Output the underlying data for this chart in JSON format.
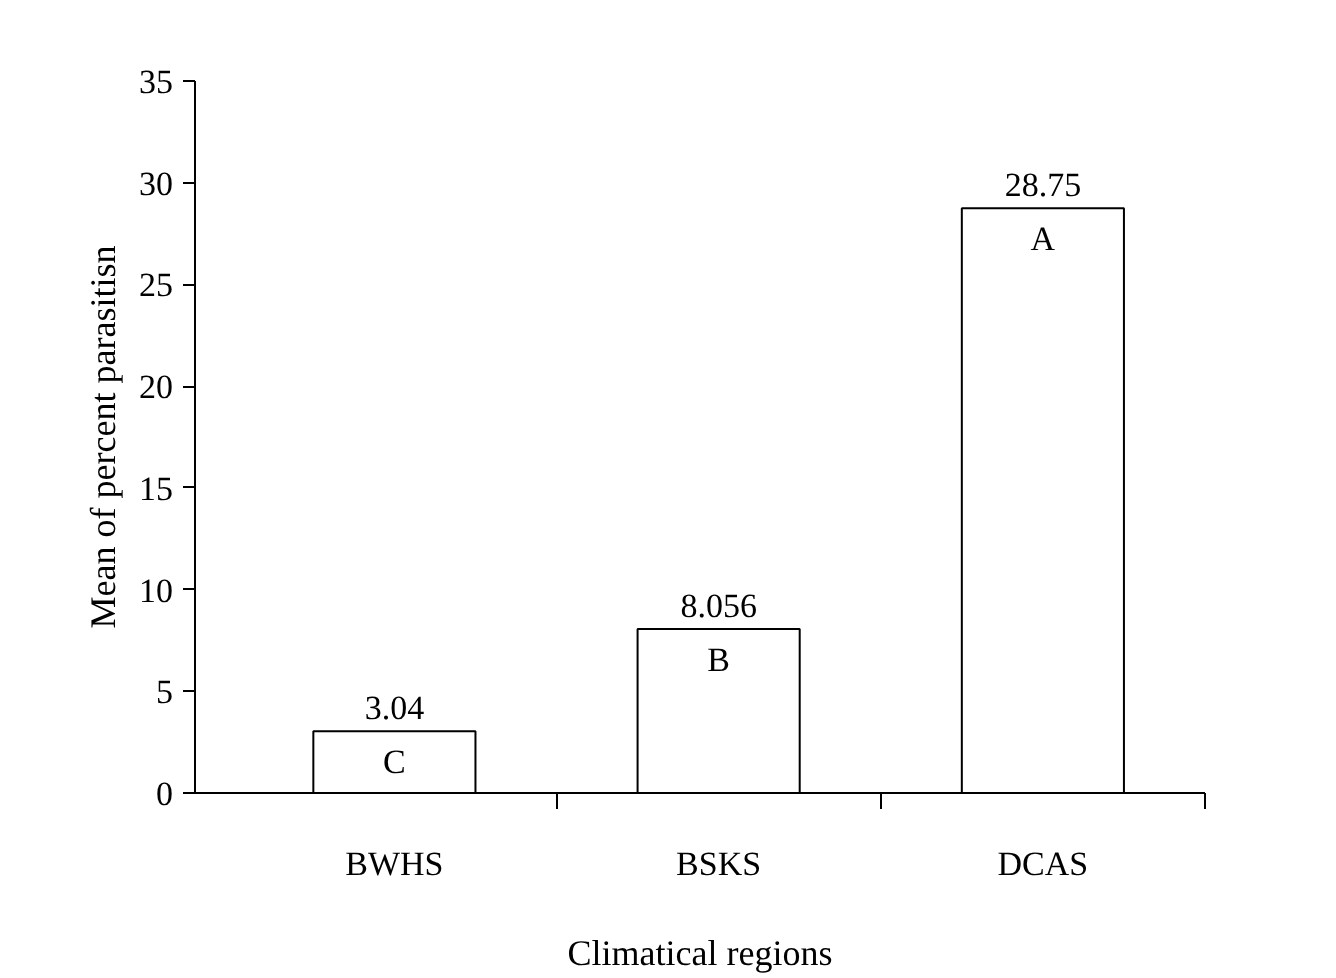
{
  "chart_data": {
    "type": "bar",
    "xlabel": "Climatical regions",
    "ylabel": "Mean of percent parasitisn",
    "categories": [
      "BWHS",
      "BSKS",
      "DCAS"
    ],
    "values": [
      3.04,
      8.056,
      28.75
    ],
    "color": "#ffffff",
    "data_labels": true,
    "ylim": [
      0,
      35
    ],
    "yticks": [
      0,
      5,
      10,
      15,
      20,
      25,
      30,
      35
    ],
    "grid": false,
    "annotations": [
      "C",
      "B",
      "A"
    ]
  }
}
